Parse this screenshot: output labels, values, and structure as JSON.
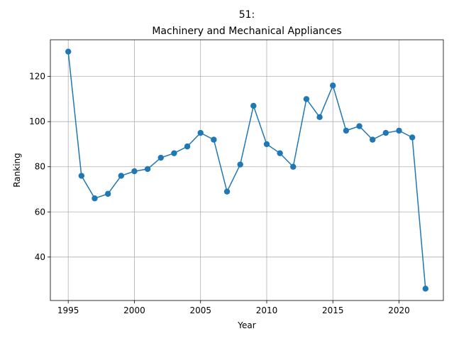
{
  "chart_data": {
    "type": "line",
    "title_line1": "51:",
    "title_line2": "Machinery and Mechanical Appliances",
    "xlabel": "Year",
    "ylabel": "Ranking",
    "xlim": [
      1993.65,
      1995.0
    ],
    "ylim": [
      20.75,
      136.25
    ],
    "x_ticks": [
      1995,
      2000,
      2005,
      2010,
      2015,
      2020
    ],
    "y_ticks": [
      40,
      60,
      80,
      100,
      120
    ],
    "grid": true,
    "legend": "none",
    "color": "#1f77b4",
    "series": [
      {
        "x": [
          1995,
          1996,
          1997,
          1998,
          1999,
          2000,
          2001,
          2002,
          2003,
          2004,
          2005,
          2006,
          2007,
          2008,
          2009,
          2010,
          2011,
          2012,
          2013,
          2014,
          2015,
          2016,
          2017,
          2018,
          2019,
          2020,
          2021,
          2022
        ],
        "values": [
          131,
          76,
          66,
          68,
          76,
          78,
          79,
          84,
          86,
          89,
          95,
          92,
          69,
          81,
          107,
          90,
          86,
          80,
          110,
          102,
          116,
          96,
          98,
          92,
          95,
          96,
          93,
          26
        ]
      }
    ]
  }
}
